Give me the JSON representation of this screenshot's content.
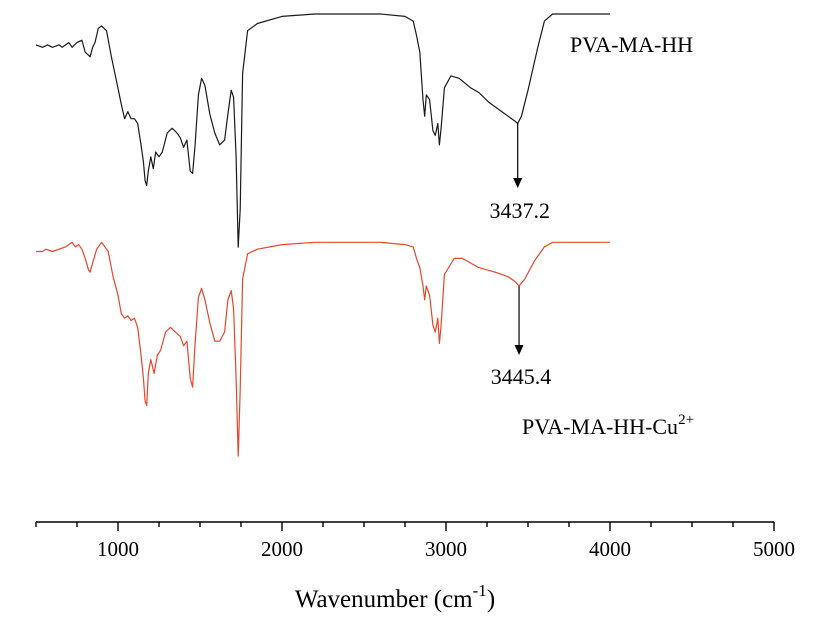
{
  "chart_data": {
    "type": "line",
    "title": "",
    "xlabel": {
      "main": "Wavenumber (cm",
      "sup": "-1",
      "tail": ")"
    },
    "ylabel": "",
    "xlim": [
      500,
      5000
    ],
    "xticks": [
      1000,
      2000,
      3000,
      4000,
      5000
    ],
    "xtick_labels": [
      "1000",
      "2000",
      "3000",
      "4000",
      "5000"
    ],
    "yaxis_visible": false,
    "grid": false,
    "legend": "none",
    "series": [
      {
        "name": "PVA-MA-HH",
        "label_sup": "",
        "color": "#1a1a1a",
        "points": [
          [
            500,
            0.87
          ],
          [
            540,
            0.86
          ],
          [
            570,
            0.87
          ],
          [
            600,
            0.86
          ],
          [
            640,
            0.87
          ],
          [
            660,
            0.86
          ],
          [
            700,
            0.88
          ],
          [
            720,
            0.86
          ],
          [
            750,
            0.88
          ],
          [
            780,
            0.89
          ],
          [
            800,
            0.84
          ],
          [
            815,
            0.83
          ],
          [
            830,
            0.82
          ],
          [
            845,
            0.86
          ],
          [
            860,
            0.88
          ],
          [
            880,
            0.94
          ],
          [
            900,
            0.95
          ],
          [
            930,
            0.93
          ],
          [
            960,
            0.82
          ],
          [
            990,
            0.72
          ],
          [
            1020,
            0.62
          ],
          [
            1040,
            0.56
          ],
          [
            1060,
            0.59
          ],
          [
            1080,
            0.56
          ],
          [
            1100,
            0.56
          ],
          [
            1120,
            0.54
          ],
          [
            1140,
            0.45
          ],
          [
            1155,
            0.38
          ],
          [
            1165,
            0.3
          ],
          [
            1175,
            0.28
          ],
          [
            1185,
            0.34
          ],
          [
            1200,
            0.4
          ],
          [
            1215,
            0.35
          ],
          [
            1230,
            0.42
          ],
          [
            1250,
            0.4
          ],
          [
            1270,
            0.42
          ],
          [
            1300,
            0.5
          ],
          [
            1330,
            0.52
          ],
          [
            1360,
            0.5
          ],
          [
            1380,
            0.48
          ],
          [
            1400,
            0.44
          ],
          [
            1420,
            0.47
          ],
          [
            1440,
            0.34
          ],
          [
            1455,
            0.33
          ],
          [
            1470,
            0.45
          ],
          [
            1490,
            0.66
          ],
          [
            1510,
            0.73
          ],
          [
            1530,
            0.7
          ],
          [
            1560,
            0.58
          ],
          [
            1590,
            0.5
          ],
          [
            1620,
            0.45
          ],
          [
            1650,
            0.47
          ],
          [
            1670,
            0.58
          ],
          [
            1690,
            0.68
          ],
          [
            1705,
            0.65
          ],
          [
            1720,
            0.4
          ],
          [
            1733,
            0.02
          ],
          [
            1745,
            0.18
          ],
          [
            1760,
            0.75
          ],
          [
            1790,
            0.93
          ],
          [
            1850,
            0.96
          ],
          [
            2000,
            0.99
          ],
          [
            2200,
            1.0
          ],
          [
            2400,
            1.0
          ],
          [
            2600,
            1.0
          ],
          [
            2750,
            0.99
          ],
          [
            2800,
            0.97
          ],
          [
            2820,
            0.91
          ],
          [
            2840,
            0.84
          ],
          [
            2860,
            0.64
          ],
          [
            2870,
            0.57
          ],
          [
            2880,
            0.66
          ],
          [
            2900,
            0.64
          ],
          [
            2920,
            0.51
          ],
          [
            2935,
            0.49
          ],
          [
            2950,
            0.54
          ],
          [
            2960,
            0.45
          ],
          [
            2970,
            0.52
          ],
          [
            2990,
            0.69
          ],
          [
            3030,
            0.74
          ],
          [
            3080,
            0.73
          ],
          [
            3150,
            0.69
          ],
          [
            3200,
            0.67
          ],
          [
            3260,
            0.63
          ],
          [
            3320,
            0.6
          ],
          [
            3380,
            0.57
          ],
          [
            3420,
            0.55
          ],
          [
            3437,
            0.54
          ],
          [
            3460,
            0.57
          ],
          [
            3500,
            0.68
          ],
          [
            3560,
            0.86
          ],
          [
            3600,
            0.97
          ],
          [
            3650,
            1.0
          ],
          [
            3800,
            1.0
          ],
          [
            4000,
            1.0
          ]
        ]
      },
      {
        "name": "PVA-MA-HH-Cu",
        "label_sup": "2+",
        "color": "#e8462a",
        "points": [
          [
            500,
            0.95
          ],
          [
            540,
            0.95
          ],
          [
            560,
            0.96
          ],
          [
            600,
            0.95
          ],
          [
            640,
            0.96
          ],
          [
            680,
            0.97
          ],
          [
            700,
            0.98
          ],
          [
            720,
            0.99
          ],
          [
            740,
            0.97
          ],
          [
            760,
            0.98
          ],
          [
            780,
            0.96
          ],
          [
            800,
            0.92
          ],
          [
            820,
            0.87
          ],
          [
            830,
            0.86
          ],
          [
            845,
            0.9
          ],
          [
            870,
            0.96
          ],
          [
            900,
            0.99
          ],
          [
            940,
            0.95
          ],
          [
            970,
            0.84
          ],
          [
            1000,
            0.76
          ],
          [
            1020,
            0.68
          ],
          [
            1040,
            0.66
          ],
          [
            1060,
            0.67
          ],
          [
            1080,
            0.65
          ],
          [
            1100,
            0.66
          ],
          [
            1120,
            0.62
          ],
          [
            1140,
            0.5
          ],
          [
            1155,
            0.4
          ],
          [
            1165,
            0.3
          ],
          [
            1175,
            0.28
          ],
          [
            1185,
            0.42
          ],
          [
            1200,
            0.48
          ],
          [
            1220,
            0.42
          ],
          [
            1240,
            0.5
          ],
          [
            1260,
            0.52
          ],
          [
            1290,
            0.6
          ],
          [
            1320,
            0.62
          ],
          [
            1350,
            0.6
          ],
          [
            1380,
            0.58
          ],
          [
            1400,
            0.54
          ],
          [
            1420,
            0.56
          ],
          [
            1440,
            0.4
          ],
          [
            1455,
            0.36
          ],
          [
            1470,
            0.55
          ],
          [
            1490,
            0.75
          ],
          [
            1510,
            0.79
          ],
          [
            1530,
            0.74
          ],
          [
            1560,
            0.64
          ],
          [
            1590,
            0.56
          ],
          [
            1620,
            0.56
          ],
          [
            1650,
            0.6
          ],
          [
            1670,
            0.74
          ],
          [
            1690,
            0.78
          ],
          [
            1705,
            0.7
          ],
          [
            1720,
            0.4
          ],
          [
            1733,
            0.06
          ],
          [
            1745,
            0.35
          ],
          [
            1760,
            0.83
          ],
          [
            1790,
            0.94
          ],
          [
            1850,
            0.96
          ],
          [
            2000,
            0.98
          ],
          [
            2200,
            0.99
          ],
          [
            2400,
            0.99
          ],
          [
            2600,
            0.99
          ],
          [
            2750,
            0.98
          ],
          [
            2800,
            0.97
          ],
          [
            2820,
            0.92
          ],
          [
            2840,
            0.88
          ],
          [
            2860,
            0.8
          ],
          [
            2870,
            0.74
          ],
          [
            2880,
            0.8
          ],
          [
            2900,
            0.76
          ],
          [
            2920,
            0.63
          ],
          [
            2935,
            0.6
          ],
          [
            2950,
            0.66
          ],
          [
            2960,
            0.55
          ],
          [
            2970,
            0.63
          ],
          [
            2990,
            0.85
          ],
          [
            3050,
            0.92
          ],
          [
            3100,
            0.92
          ],
          [
            3200,
            0.88
          ],
          [
            3300,
            0.86
          ],
          [
            3380,
            0.84
          ],
          [
            3420,
            0.82
          ],
          [
            3445,
            0.8
          ],
          [
            3480,
            0.83
          ],
          [
            3540,
            0.91
          ],
          [
            3600,
            0.97
          ],
          [
            3650,
            0.99
          ],
          [
            3800,
            0.99
          ],
          [
            4000,
            0.99
          ]
        ]
      }
    ],
    "annotations": [
      {
        "text": "3437.2",
        "x": 3437.2,
        "series": 0
      },
      {
        "text": "3445.4",
        "x": 3445.4,
        "series": 1
      }
    ]
  }
}
